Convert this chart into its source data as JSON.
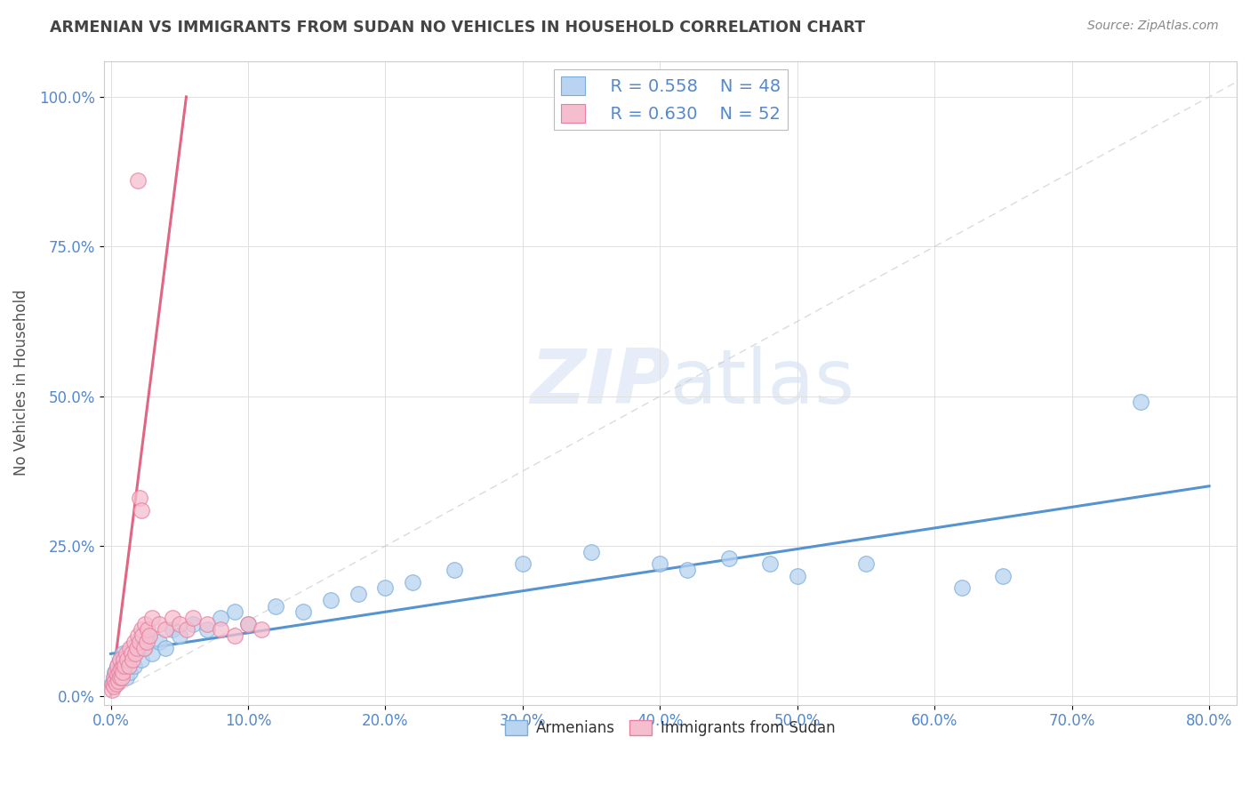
{
  "title": "ARMENIAN VS IMMIGRANTS FROM SUDAN NO VEHICLES IN HOUSEHOLD CORRELATION CHART",
  "source": "Source: ZipAtlas.com",
  "ylabel_label": "No Vehicles in Household",
  "xlim": [
    -0.5,
    82
  ],
  "ylim": [
    -1.5,
    106
  ],
  "xticks": [
    0,
    10,
    20,
    30,
    40,
    50,
    60,
    70,
    80
  ],
  "yticks": [
    0,
    25,
    50,
    75,
    100
  ],
  "watermark_zip": "ZIP",
  "watermark_atlas": "atlas",
  "legend_r1": "R = 0.558",
  "legend_n1": "N = 48",
  "legend_r2": "R = 0.630",
  "legend_n2": "N = 52",
  "color_armenian_fill": "#b8d4f0",
  "color_armenian_edge": "#7aacdd",
  "color_sudan_fill": "#f5bece",
  "color_sudan_edge": "#e87fa0",
  "color_armenian_line": "#4488cc",
  "color_sudan_line": "#dd5577",
  "color_refline": "#cccccc",
  "color_grid": "#e0e0e0",
  "color_tick_label": "#5588cc",
  "color_title": "#444444",
  "color_source": "#888888",
  "background": "#ffffff",
  "armenian_x": [
    0.1,
    0.2,
    0.3,
    0.4,
    0.5,
    0.6,
    0.7,
    0.8,
    0.9,
    1.0,
    1.1,
    1.2,
    1.4,
    1.5,
    1.7,
    1.8,
    2.0,
    2.2,
    2.5,
    2.8,
    3.0,
    3.5,
    4.0,
    4.5,
    5.0,
    6.0,
    7.0,
    8.0,
    9.0,
    10.0,
    12.0,
    14.0,
    16.0,
    18.0,
    20.0,
    22.0,
    25.0,
    30.0,
    35.0,
    40.0,
    42.0,
    45.0,
    48.0,
    50.0,
    55.0,
    62.0,
    65.0,
    75.0
  ],
  "armenian_y": [
    2.0,
    3.0,
    4.0,
    2.5,
    5.0,
    3.5,
    6.0,
    4.0,
    7.0,
    5.0,
    3.0,
    6.0,
    4.0,
    8.0,
    5.0,
    7.0,
    9.0,
    6.0,
    8.0,
    10.0,
    7.0,
    9.0,
    8.0,
    11.0,
    10.0,
    12.0,
    11.0,
    13.0,
    14.0,
    12.0,
    15.0,
    14.0,
    16.0,
    17.0,
    18.0,
    19.0,
    21.0,
    22.0,
    24.0,
    22.0,
    21.0,
    23.0,
    22.0,
    20.0,
    22.0,
    18.0,
    20.0,
    49.0
  ],
  "sudan_x": [
    0.1,
    0.15,
    0.2,
    0.25,
    0.3,
    0.35,
    0.4,
    0.45,
    0.5,
    0.55,
    0.6,
    0.65,
    0.7,
    0.75,
    0.8,
    0.85,
    0.9,
    0.95,
    1.0,
    1.1,
    1.2,
    1.3,
    1.4,
    1.5,
    1.6,
    1.7,
    1.8,
    1.9,
    2.0,
    2.1,
    2.2,
    2.3,
    2.4,
    2.5,
    2.6,
    2.7,
    2.8,
    3.0,
    3.5,
    4.0,
    4.5,
    5.0,
    5.5,
    6.0,
    7.0,
    8.0,
    9.0,
    10.0,
    11.0,
    2.0,
    2.1,
    2.2
  ],
  "sudan_y": [
    1.0,
    2.0,
    3.0,
    1.5,
    2.5,
    4.0,
    2.0,
    3.5,
    5.0,
    2.5,
    4.0,
    3.0,
    6.0,
    4.5,
    3.0,
    5.0,
    4.0,
    6.0,
    5.0,
    7.0,
    6.0,
    5.0,
    8.0,
    7.0,
    6.0,
    9.0,
    7.0,
    8.0,
    10.0,
    9.0,
    11.0,
    10.0,
    8.0,
    12.0,
    9.0,
    11.0,
    10.0,
    13.0,
    12.0,
    11.0,
    13.0,
    12.0,
    11.0,
    13.0,
    12.0,
    11.0,
    10.0,
    12.0,
    11.0,
    86.0,
    33.0,
    31.0
  ],
  "armenian_trend": [
    0,
    80,
    7.0,
    35.0
  ],
  "sudan_trend_x": [
    0,
    5.5
  ],
  "sudan_trend_y": [
    0,
    100
  ]
}
